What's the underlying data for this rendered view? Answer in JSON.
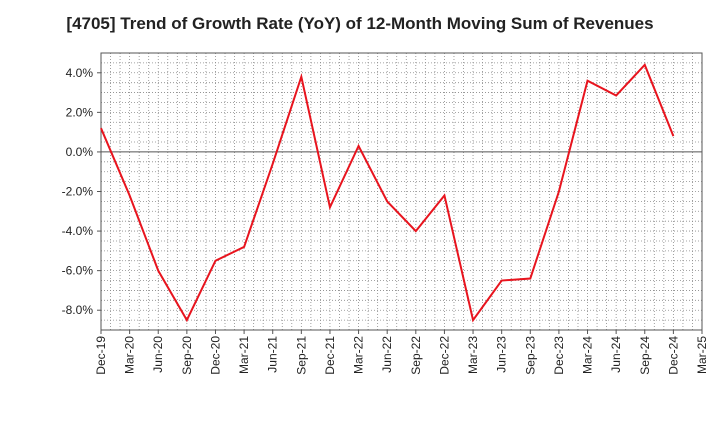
{
  "chart_data": {
    "type": "line",
    "title": "[4705]  Trend of Growth Rate (YoY) of 12-Month Moving Sum of Revenues",
    "xlabel": "",
    "ylabel": "",
    "ylim": [
      -9.0,
      5.0
    ],
    "y_ticks": [
      4.0,
      2.0,
      0.0,
      -2.0,
      -4.0,
      -6.0,
      -8.0
    ],
    "y_tick_labels": [
      "4.0%",
      "2.0%",
      "0.0%",
      "-2.0%",
      "-4.0%",
      "-6.0%",
      "-8.0%"
    ],
    "categories": [
      "Dec-19",
      "Mar-20",
      "Jun-20",
      "Sep-20",
      "Dec-20",
      "Mar-21",
      "Jun-21",
      "Sep-21",
      "Dec-21",
      "Mar-22",
      "Jun-22",
      "Sep-22",
      "Dec-22",
      "Mar-23",
      "Jun-23",
      "Sep-23",
      "Dec-23",
      "Mar-24",
      "Jun-24",
      "Sep-24",
      "Dec-24",
      "Mar-25"
    ],
    "grid": true,
    "series": [
      {
        "color": "#e8141e",
        "values": [
          1.2,
          -2.2,
          -6.0,
          -8.5,
          -5.5,
          -4.8,
          -0.6,
          3.8,
          -2.8,
          0.3,
          -2.5,
          -4.0,
          -2.2,
          -8.5,
          -6.5,
          -6.4,
          -2.0,
          3.6,
          2.85,
          4.4,
          0.8,
          null
        ]
      }
    ],
    "zero_line": true
  }
}
